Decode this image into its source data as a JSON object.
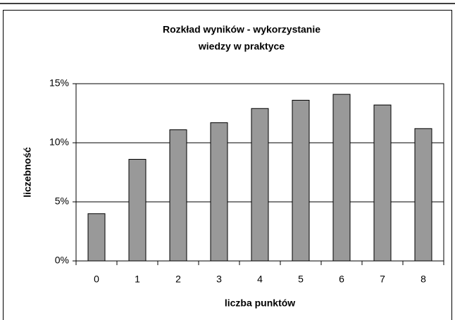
{
  "chart_data": {
    "type": "bar",
    "title": [
      "Rozkład wyników - wykorzystanie",
      "wiedzy w praktyce"
    ],
    "x_label": "liczba punktów",
    "y_label": "liczebność",
    "categories": [
      "0",
      "1",
      "2",
      "3",
      "4",
      "5",
      "6",
      "7",
      "8"
    ],
    "values": [
      4.0,
      8.6,
      11.1,
      11.7,
      12.9,
      13.6,
      14.1,
      13.2,
      11.2
    ],
    "color": "#999999",
    "ylim": [
      0,
      15
    ],
    "yticks": [
      {
        "value": 0,
        "label": "0%"
      },
      {
        "value": 5,
        "label": "5%"
      },
      {
        "value": 10,
        "label": "10%"
      },
      {
        "value": 15,
        "label": "15%"
      }
    ],
    "grid": true
  }
}
